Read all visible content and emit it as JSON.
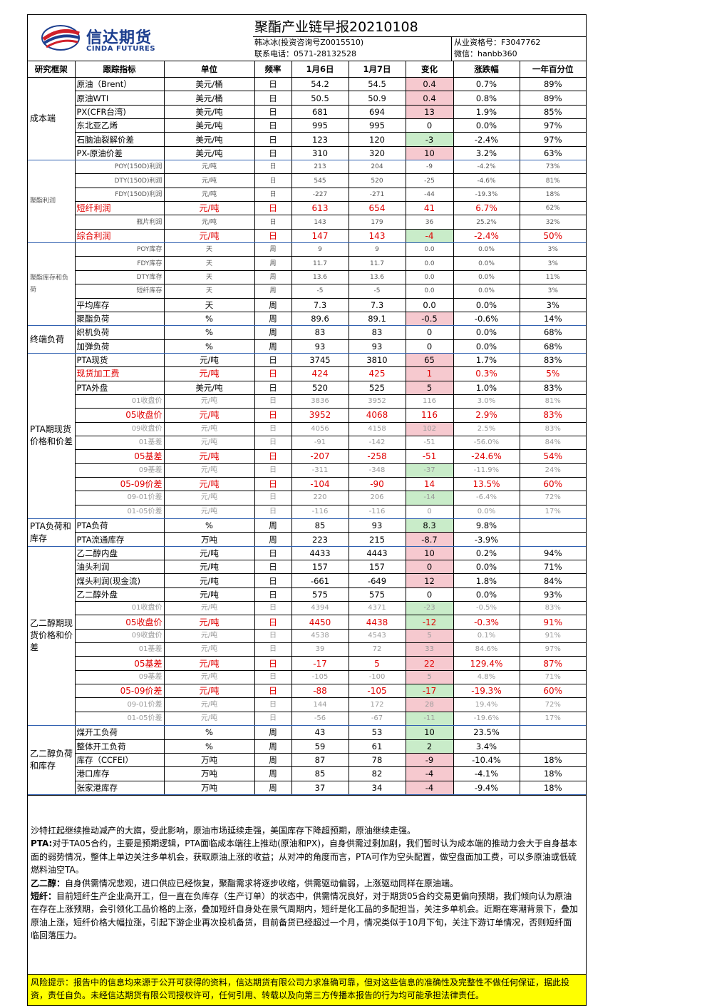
{
  "header": {
    "logo_cn": "信达期货",
    "logo_en": "CINDA FUTURES",
    "title": "聚酯产业链早报20210108",
    "analyst": "韩冰冰(投资咨询号Z0015510)",
    "phone": "联系电话：0571-28132528",
    "qualification": "从业资格号：F3047762",
    "wechat": "微信：hanbb360"
  },
  "table": {
    "columns": [
      "研究框架",
      "跟踪指标",
      "单位",
      "频率",
      "1月6日",
      "1月7日",
      "变化",
      "涨跌幅",
      "一年百分位"
    ],
    "groups": [
      {
        "framework": "成本端",
        "rows": [
          {
            "style": "",
            "ind": "原油（Brent）",
            "unit": "美元/桶",
            "freq": "日",
            "d1": "54.2",
            "d2": "54.5",
            "chg": "0.4",
            "sign": "pos",
            "pct": "0.7%",
            "pctl": "89%"
          },
          {
            "style": "",
            "ind": "原油WTI",
            "unit": "美元/桶",
            "freq": "日",
            "d1": "50.5",
            "d2": "50.9",
            "chg": "0.4",
            "sign": "pos",
            "pct": "0.8%",
            "pctl": "89%"
          },
          {
            "style": "",
            "ind": "PX(CFR台湾)",
            "unit": "美元/吨",
            "freq": "日",
            "d1": "681",
            "d2": "694",
            "chg": "13",
            "sign": "pos",
            "pct": "1.9%",
            "pctl": "85%"
          },
          {
            "style": "",
            "ind": "东北亚乙烯",
            "unit": "美元/吨",
            "freq": "日",
            "d1": "995",
            "d2": "995",
            "chg": "0",
            "sign": "",
            "pct": "0.0%",
            "pctl": "97%"
          },
          {
            "style": "",
            "ind": "石脑油裂解价差",
            "unit": "美元/吨",
            "freq": "日",
            "d1": "123",
            "d2": "120",
            "chg": "-3",
            "sign": "neg",
            "pct": "-2.4%",
            "pctl": "97%"
          },
          {
            "style": "",
            "ind": "PX-原油价差",
            "unit": "美元/吨",
            "freq": "日",
            "d1": "310",
            "d2": "320",
            "chg": "10",
            "sign": "pos",
            "pct": "3.2%",
            "pctl": "63%"
          }
        ]
      },
      {
        "framework": "聚酯利润",
        "rows": [
          {
            "style": "sm",
            "ind": "POY(150D)利润",
            "unit": "元/吨",
            "freq": "日",
            "d1": "213",
            "d2": "204",
            "chg": "-9",
            "sign": "",
            "pct": "-4.2%",
            "pctl": "73%"
          },
          {
            "style": "sm",
            "ind": "DTY(150D)利润",
            "unit": "元/吨",
            "freq": "日",
            "d1": "545",
            "d2": "520",
            "chg": "-25",
            "sign": "",
            "pct": "-4.6%",
            "pctl": "81%"
          },
          {
            "style": "sm",
            "ind": "FDY(150D)利润",
            "unit": "元/吨",
            "freq": "日",
            "d1": "-227",
            "d2": "-271",
            "chg": "-44",
            "sign": "",
            "pct": "-19.3%",
            "pctl": "18%"
          },
          {
            "style": "red",
            "ind": "短纤利润",
            "unit": "元/吨",
            "freq": "日",
            "d1": "613",
            "d2": "654",
            "chg": "41",
            "sign": "",
            "pct": "6.7%",
            "pctl": "62%",
            "pctl_small": true
          },
          {
            "style": "sm",
            "ind": "瓶片利润",
            "unit": "元/吨",
            "freq": "日",
            "d1": "143",
            "d2": "179",
            "chg": "36",
            "sign": "",
            "pct": "25.2%",
            "pctl": "32%"
          },
          {
            "style": "red",
            "ind": "综合利润",
            "unit": "元/吨",
            "freq": "日",
            "d1": "147",
            "d2": "143",
            "chg": "-4",
            "sign": "neg",
            "pct": "-2.4%",
            "pctl": "50%"
          }
        ]
      },
      {
        "framework": "聚酯库存和负荷",
        "rows": [
          {
            "style": "sm",
            "ind": "POY库存",
            "unit": "天",
            "freq": "周",
            "d1": "9",
            "d2": "9",
            "chg": "0.0",
            "sign": "",
            "pct": "0.0%",
            "pctl": "3%"
          },
          {
            "style": "sm",
            "ind": "FDY库存",
            "unit": "天",
            "freq": "周",
            "d1": "11.7",
            "d2": "11.7",
            "chg": "0.0",
            "sign": "",
            "pct": "0.0%",
            "pctl": "3%"
          },
          {
            "style": "sm",
            "ind": "DTY库存",
            "unit": "天",
            "freq": "周",
            "d1": "13.6",
            "d2": "13.6",
            "chg": "0.0",
            "sign": "",
            "pct": "0.0%",
            "pctl": "11%"
          },
          {
            "style": "sm",
            "ind": "短纤库存",
            "unit": "天",
            "freq": "周",
            "d1": "-5",
            "d2": "-5",
            "chg": "0.0",
            "sign": "",
            "pct": "0.0%",
            "pctl": "3%"
          },
          {
            "style": "",
            "ind": "平均库存",
            "unit": "天",
            "freq": "周",
            "d1": "7.3",
            "d2": "7.3",
            "chg": "0.0",
            "sign": "",
            "pct": "0.0%",
            "pctl": "3%"
          },
          {
            "style": "",
            "ind": "聚酯负荷",
            "unit": "%",
            "freq": "周",
            "d1": "89.6",
            "d2": "89.1",
            "chg": "-0.5",
            "sign": "pos",
            "pct": "-0.6%",
            "pctl": "14%"
          }
        ]
      },
      {
        "framework": "终端负荷",
        "rows": [
          {
            "style": "",
            "ind": "织机负荷",
            "unit": "%",
            "freq": "周",
            "d1": "83",
            "d2": "83",
            "chg": "0",
            "sign": "",
            "pct": "0.0%",
            "pctl": "68%"
          },
          {
            "style": "",
            "ind": "加弹负荷",
            "unit": "%",
            "freq": "周",
            "d1": "93",
            "d2": "93",
            "chg": "0",
            "sign": "",
            "pct": "0.0%",
            "pctl": "68%"
          }
        ]
      },
      {
        "framework": "PTA期现货价格和价差",
        "rows": [
          {
            "style": "",
            "ind": "PTA现货",
            "unit": "元/吨",
            "freq": "日",
            "d1": "3745",
            "d2": "3810",
            "chg": "65",
            "sign": "pos",
            "pct": "1.7%",
            "pctl": "83%"
          },
          {
            "style": "red",
            "ind": "现货加工费",
            "unit": "元/吨",
            "freq": "日",
            "d1": "424",
            "d2": "425",
            "chg": "1",
            "sign": "pos",
            "pct": "0.3%",
            "pctl": "5%"
          },
          {
            "style": "",
            "ind": "PTA外盘",
            "unit": "美元/吨",
            "freq": "日",
            "d1": "520",
            "d2": "525",
            "chg": "5",
            "sign": "pos",
            "pct": "1.0%",
            "pctl": "83%"
          },
          {
            "style": "gray",
            "ind": "01收盘价",
            "unit": "元/吨",
            "freq": "日",
            "d1": "3836",
            "d2": "3952",
            "chg": "116",
            "sign": "",
            "pct": "3.0%",
            "pctl": "81%"
          },
          {
            "style": "red rr",
            "ind": "05收盘价",
            "unit": "元/吨",
            "freq": "日",
            "d1": "3952",
            "d2": "4068",
            "chg": "116",
            "sign": "",
            "pct": "2.9%",
            "pctl": "83%"
          },
          {
            "style": "gray",
            "ind": "09收盘价",
            "unit": "元/吨",
            "freq": "日",
            "d1": "4056",
            "d2": "4158",
            "chg": "102",
            "sign": "pos",
            "pct": "2.5%",
            "pctl": "83%"
          },
          {
            "style": "gray",
            "ind": "01基差",
            "unit": "元/吨",
            "freq": "日",
            "d1": "-91",
            "d2": "-142",
            "chg": "-51",
            "sign": "",
            "pct": "-56.0%",
            "pctl": "84%"
          },
          {
            "style": "red rr",
            "ind": "05基差",
            "unit": "元/吨",
            "freq": "日",
            "d1": "-207",
            "d2": "-258",
            "chg": "-51",
            "sign": "",
            "pct": "-24.6%",
            "pctl": "54%"
          },
          {
            "style": "gray",
            "ind": "09基差",
            "unit": "元/吨",
            "freq": "日",
            "d1": "-311",
            "d2": "-348",
            "chg": "-37",
            "sign": "neg",
            "pct": "-11.9%",
            "pctl": "24%"
          },
          {
            "style": "red rr",
            "ind": "05-09价差",
            "unit": "元/吨",
            "freq": "日",
            "d1": "-104",
            "d2": "-90",
            "chg": "14",
            "sign": "",
            "pct": "13.5%",
            "pctl": "60%"
          },
          {
            "style": "gray",
            "ind": "09-01价差",
            "unit": "元/吨",
            "freq": "日",
            "d1": "220",
            "d2": "206",
            "chg": "-14",
            "sign": "neg",
            "pct": "-6.4%",
            "pctl": "72%"
          },
          {
            "style": "gray",
            "ind": "01-05价差",
            "unit": "元/吨",
            "freq": "日",
            "d1": "-116",
            "d2": "-116",
            "chg": "0",
            "sign": "",
            "pct": "0.0%",
            "pctl": "17%"
          }
        ]
      },
      {
        "framework": "PTA负荷和库存",
        "rows": [
          {
            "style": "",
            "ind": "PTA负荷",
            "unit": "%",
            "freq": "周",
            "d1": "85",
            "d2": "93",
            "chg": "8.3",
            "sign": "neg",
            "pct": "9.8%",
            "pctl": ""
          },
          {
            "style": "",
            "ind": "PTA流通库存",
            "unit": "万吨",
            "freq": "周",
            "d1": "223",
            "d2": "215",
            "chg": "-8.7",
            "sign": "pos",
            "pct": "-3.9%",
            "pctl": ""
          }
        ]
      },
      {
        "framework": "乙二醇期现货价格和价差",
        "rows": [
          {
            "style": "",
            "ind": "乙二醇内盘",
            "unit": "元/吨",
            "freq": "日",
            "d1": "4433",
            "d2": "4443",
            "chg": "10",
            "sign": "pos",
            "pct": "0.2%",
            "pctl": "94%"
          },
          {
            "style": "",
            "ind": "油头利润",
            "unit": "元/吨",
            "freq": "日",
            "d1": "157",
            "d2": "157",
            "chg": "0",
            "sign": "pos",
            "pct": "0.0%",
            "pctl": "71%"
          },
          {
            "style": "",
            "ind": "煤头利润(现金流)",
            "unit": "元/吨",
            "freq": "日",
            "d1": "-661",
            "d2": "-649",
            "chg": "12",
            "sign": "pos",
            "pct": "1.8%",
            "pctl": "84%"
          },
          {
            "style": "",
            "ind": "乙二醇外盘",
            "unit": "元/吨",
            "freq": "日",
            "d1": "575",
            "d2": "575",
            "chg": "0",
            "sign": "",
            "pct": "0.0%",
            "pctl": "93%"
          },
          {
            "style": "gray",
            "ind": "01收盘价",
            "unit": "元/吨",
            "freq": "日",
            "d1": "4394",
            "d2": "4371",
            "chg": "-23",
            "sign": "neg",
            "pct": "-0.5%",
            "pctl": "83%"
          },
          {
            "style": "red rr",
            "ind": "05收盘价",
            "unit": "元/吨",
            "freq": "日",
            "d1": "4450",
            "d2": "4438",
            "chg": "-12",
            "sign": "neg",
            "pct": "-0.3%",
            "pctl": "91%"
          },
          {
            "style": "gray",
            "ind": "09收盘价",
            "unit": "元/吨",
            "freq": "日",
            "d1": "4538",
            "d2": "4543",
            "chg": "5",
            "sign": "pos",
            "pct": "0.1%",
            "pctl": "91%"
          },
          {
            "style": "gray",
            "ind": "01基差",
            "unit": "元/吨",
            "freq": "日",
            "d1": "39",
            "d2": "72",
            "chg": "33",
            "sign": "pos",
            "pct": "84.6%",
            "pctl": "97%"
          },
          {
            "style": "red rr",
            "ind": "05基差",
            "unit": "元/吨",
            "freq": "日",
            "d1": "-17",
            "d2": "5",
            "chg": "22",
            "sign": "pos",
            "pct": "129.4%",
            "pctl": "87%"
          },
          {
            "style": "gray",
            "ind": "09基差",
            "unit": "元/吨",
            "freq": "日",
            "d1": "-105",
            "d2": "-100",
            "chg": "5",
            "sign": "pos",
            "pct": "4.8%",
            "pctl": "71%"
          },
          {
            "style": "red rr",
            "ind": "05-09价差",
            "unit": "元/吨",
            "freq": "日",
            "d1": "-88",
            "d2": "-105",
            "chg": "-17",
            "sign": "neg",
            "pct": "-19.3%",
            "pctl": "60%"
          },
          {
            "style": "gray",
            "ind": "09-01价差",
            "unit": "元/吨",
            "freq": "日",
            "d1": "144",
            "d2": "172",
            "chg": "28",
            "sign": "pos",
            "pct": "19.4%",
            "pctl": "72%"
          },
          {
            "style": "gray",
            "ind": "01-05价差",
            "unit": "元/吨",
            "freq": "日",
            "d1": "-56",
            "d2": "-67",
            "chg": "-11",
            "sign": "neg",
            "pct": "-19.6%",
            "pctl": "17%"
          }
        ]
      },
      {
        "framework": "乙二醇负荷和库存",
        "rows": [
          {
            "style": "",
            "ind": "煤开工负荷",
            "unit": "%",
            "freq": "周",
            "d1": "43",
            "d2": "53",
            "chg": "10",
            "sign": "neg",
            "pct": "23.5%",
            "pctl": ""
          },
          {
            "style": "",
            "ind": "整体开工负荷",
            "unit": "%",
            "freq": "周",
            "d1": "59",
            "d2": "61",
            "chg": "2",
            "sign": "neg",
            "pct": "3.4%",
            "pctl": ""
          },
          {
            "style": "",
            "ind": "库存（CCFEI）",
            "unit": "万吨",
            "freq": "周",
            "d1": "87",
            "d2": "78",
            "chg": "-9",
            "sign": "pos",
            "pct": "-10.4%",
            "pctl": "18%"
          },
          {
            "style": "",
            "ind": "港口库存",
            "unit": "万吨",
            "freq": "周",
            "d1": "85",
            "d2": "82",
            "chg": "-4",
            "sign": "pos",
            "pct": "-4.1%",
            "pctl": "18%"
          },
          {
            "style": "",
            "ind": "张家港库存",
            "unit": "万吨",
            "freq": "周",
            "d1": "37",
            "d2": "34",
            "chg": "-4",
            "sign": "pos",
            "pct": "-9.4%",
            "pctl": "18%"
          }
        ]
      }
    ]
  },
  "commentary": {
    "p1": "沙特扛起继续推动减产的大旗，受此影响，原油市场延续走强，美国库存下降超预期，原油继续走强。",
    "p2_label": "PTA:",
    "p2": "对于TA05合约，主要是预期逻辑，PTA面临成本端往上推动(原油和PX)，自身供需过剩加剧，我们暂时认为成本端的推动力会大于自身基本面的弱势情况，整体上单边关注多单机会，获取原油上涨的收益；从对冲的角度而言，PTA可作为空头配置，做空盘面加工费，可以多原油或低硫燃料油空TA。",
    "p3_label": "乙二醇：",
    "p3": "自身供需情况悲观，进口供应已经恢复，聚酯需求将逐步收缩，供需驱动偏弱，上涨驱动同样在原油端。",
    "p4_label": "短纤：",
    "p4": "目前短纤生产企业高开工，但一直在负库存（生产订单）的状态中，供需情况良好，对于期货05合约交易更偏向预期，我们倾向认为原油在存在上涨预期，会引领化工品价格的上涨，叠加短纤自身处在景气周期内，短纤是化工品的多配担当，关注多单机会。近期在寒潮背景下，叠加原油上涨，短纤价格大幅拉涨，引起下游企业再次投机备货，目前备货已经超过一个月，情况类似于10月下旬，关注下游订单情况，否则短纤面临回落压力。"
  },
  "risk": "风险提示：报告中的信息均来源于公开可获得的资料，信达期货有限公司力求准确可靠，但对这些信息的准确性及完整性不做任何保证，据此投资，责任自负。未经信达期货有限公司授权许可，任何引用、转载以及向第三方传播本报告的行为均可能承担法律责任。",
  "colors": {
    "up": "#f6c9cf",
    "down": "#c9ecc9",
    "red_text": "#e00000",
    "group_line": "#3060b0",
    "risk_bg": "#ffff00",
    "brand": "#1d3f8f"
  }
}
